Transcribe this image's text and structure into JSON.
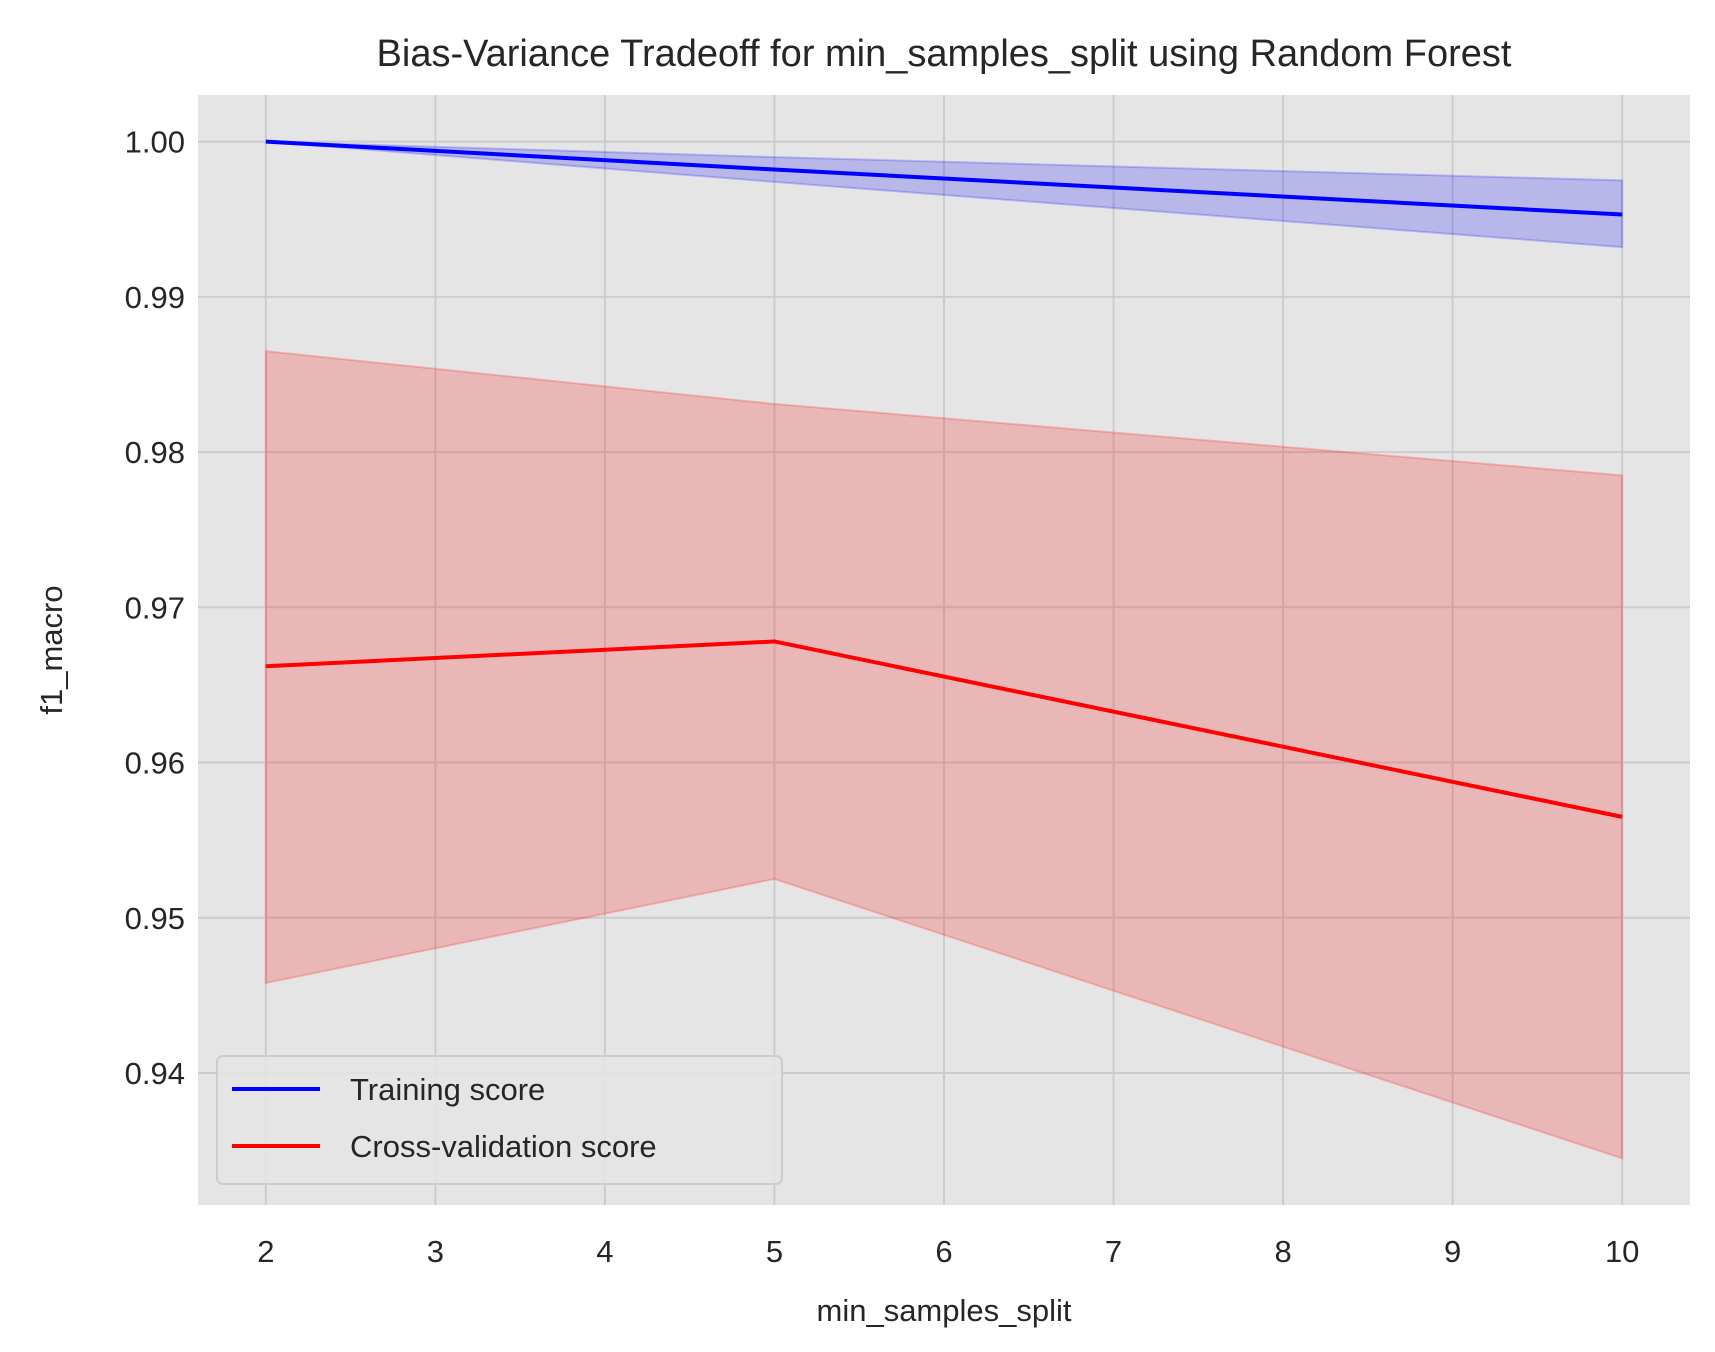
{
  "chart_data": {
    "type": "line",
    "title": "Bias-Variance Tradeoff for min_samples_split using Random Forest",
    "xlabel": "min_samples_split",
    "ylabel": "f1_macro",
    "xlim": [
      1.6,
      10.4
    ],
    "ylim": [
      0.9315,
      1.003
    ],
    "xticks": [
      2,
      3,
      4,
      5,
      6,
      7,
      8,
      9,
      10
    ],
    "xtick_labels": [
      "2",
      "3",
      "4",
      "5",
      "6",
      "7",
      "8",
      "9",
      "10"
    ],
    "yticks": [
      0.94,
      0.95,
      0.96,
      0.97,
      0.98,
      0.99,
      1.0
    ],
    "ytick_labels": [
      "0.94",
      "0.95",
      "0.96",
      "0.97",
      "0.98",
      "0.99",
      "1.00"
    ],
    "grid": true,
    "legend_position": "lower-left",
    "x": [
      2,
      5,
      10
    ],
    "series": [
      {
        "name": "Training score",
        "color": "#0000ff",
        "values": [
          1.0,
          0.9982,
          0.9953
        ],
        "band_lower": [
          1.0,
          0.9974,
          0.9932
        ],
        "band_upper": [
          1.0,
          0.999,
          0.9975
        ]
      },
      {
        "name": "Cross-validation score",
        "color": "#ff0000",
        "values": [
          0.9662,
          0.9678,
          0.9565
        ],
        "band_lower": [
          0.9458,
          0.9525,
          0.9345
        ],
        "band_upper": [
          0.9865,
          0.9831,
          0.9785
        ]
      }
    ]
  }
}
